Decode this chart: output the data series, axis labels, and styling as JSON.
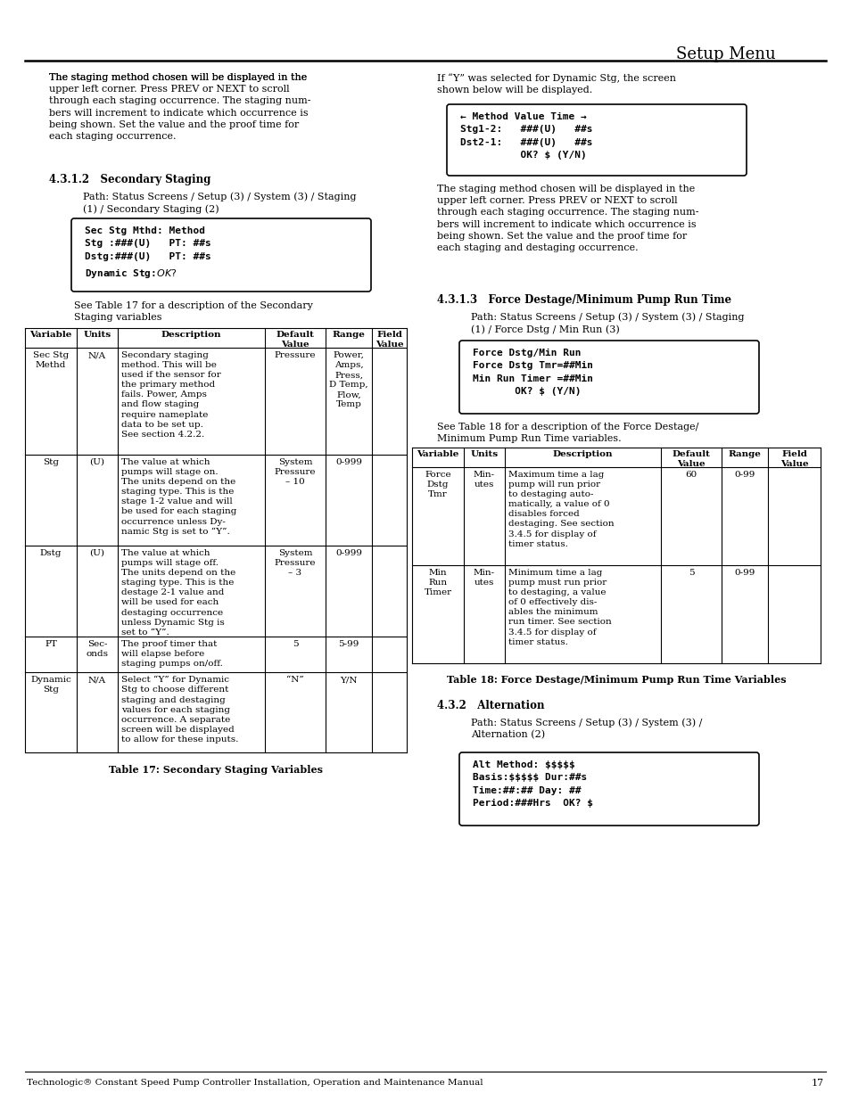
{
  "title": "Setup Menu",
  "page_number": "17",
  "footer_text": "Technologic® Constant Speed Pump Controller Installation, Operation and Maintenance Manual",
  "bg_color": "#ffffff",
  "left_para1": "The staging method chosen will be displayed in the upper left corner. Press PREV or NEXT to scroll through each staging occurrence. The staging numbers will increment to indicate which occurrence is being shown. Set the value and the proof time for each staging occurrence.",
  "section_4312_title": "4.3.1.2   Secondary Staging",
  "section_4312_path": "Path: Status Screens / Setup (3) / System (3) / Staging (1) / Secondary Staging (2)",
  "code_box1_lines": [
    "Sec Stg Mthd: Method",
    "Stg :###(U)   PT: ##s",
    "Dstg:###(U)   PT: ##s",
    "Dynamic Stg:$   OK? $"
  ],
  "see_table17": "See Table 17 for a description of the Secondary\nStaging variables",
  "table17_caption": "Table 17: Secondary Staging Variables",
  "table17_headers": [
    "Variable",
    "Units",
    "Description",
    "Default\nValue",
    "Range",
    "Field\nValue"
  ],
  "table17_rows": [
    {
      "var": "Sec Stg\nMethd",
      "units": "N/A",
      "desc": "Secondary staging\nmethod. This will be\nused if the sensor for\nthe primary method\nfails. Power, Amps\nand flow staging\nrequire nameplate\ndata to be set up.\nSee section 4.2.2.",
      "default": "Pressure",
      "range": "Power,\nAmps,\nPress,\nD Temp,\nFlow,\nTemp",
      "field": ""
    },
    {
      "var": "Stg",
      "units": "(U)",
      "desc": "The value at which\npumps will stage on.\nThe units depend on the\nstaging type. This is the\nstage 1-2 value and will\nbe used for each staging\noccurrence unless Dy-\nnamic Stg is set to “Y”.",
      "default": "System\nPressure\n– 10",
      "range": "0-999",
      "field": ""
    },
    {
      "var": "Dstg",
      "units": "(U)",
      "desc": "The value at which\npumps will stage off.\nThe units depend on the\nstaging type. This is the\ndestage 2-1 value and\nwill be used for each\ndestaging occurrence\nunless Dynamic Stg is\nset to “Y”.",
      "default": "System\nPressure\n– 3",
      "range": "0-999",
      "field": ""
    },
    {
      "var": "PT",
      "units": "Sec-\nonds",
      "desc": "The proof timer that\nwill elapse before\nstaging pumps on/off.",
      "default": "5",
      "range": "5-99",
      "field": ""
    },
    {
      "var": "Dynamic\nStg",
      "units": "N/A",
      "desc": "Select “Y” for Dynamic\nStg to choose different\nstaging and destaging\nvalues for each staging\noccurrence. A separate\nscreen will be displayed\nto allow for these inputs.",
      "default": "“N”",
      "range": "Y/N",
      "field": ""
    }
  ],
  "right_para1": "If “Y” was selected for Dynamic Stg, the screen\nshown below will be displayed.",
  "code_box2_lines": [
    "← Method Value Time →",
    "Stg1-2:   ###(U)   ##s",
    "Dst2-1:   ###(U)   ##s",
    "          OK? $ (Y/N)"
  ],
  "right_para2": "The staging method chosen will be displayed in the\nupper left corner. Press PREV or NEXT to scroll\nthrough each staging occurrence. The staging num-\nbers will increment to indicate which occurrence is\nbeing shown. Set the value and the proof time for\neach staging and destaging occurrence.",
  "section_4313_title": "4.3.1.3   Force Destage/Minimum Pump Run Time",
  "section_4313_path": "Path: Status Screens / Setup (3) / System (3) / Staging\n(1) / Force Dstg / Min Run (3)",
  "code_box3_lines": [
    "Force Dstg/Min Run",
    "Force Dstg Tmr=##Min",
    "Min Run Timer =##Min",
    "       OK? $ (Y/N)"
  ],
  "see_table18": "See Table 18 for a description of the Force Destage/\nMinimum Pump Run Time variables.",
  "table18_caption": "Table 18: Force Destage/Minimum Pump Run Time Variables",
  "table18_rows": [
    {
      "var": "Force\nDstg\nTmr",
      "units": "Min-\nutes",
      "desc": "Maximum time a lag\npump will run prior\nto destaging auto-\nmatically, a value of 0\ndisables forced\ndestaging. See section\n3.4.5 for display of\ntimer status.",
      "default": "60",
      "range": "0-99",
      "field": ""
    },
    {
      "var": "Min\nRun\nTimer",
      "units": "Min-\nutes",
      "desc": "Minimum time a lag\npump must run prior\nto destaging, a value\nof 0 effectively dis-\nables the minimum\nrun timer. See section\n3.4.5 for display of\ntimer status.",
      "default": "5",
      "range": "0-99",
      "field": ""
    }
  ],
  "section_432_title": "4.3.2   Alternation",
  "section_432_path": "Path: Status Screens / Setup (3) / System (3) /\nAlternation (2)",
  "code_box4_lines": [
    "Alt Method: $$$$$",
    "Basis:$$$$$ Dur:##s",
    "Time:##:## Day: ##",
    "Period:###Hrs  OK? $"
  ]
}
